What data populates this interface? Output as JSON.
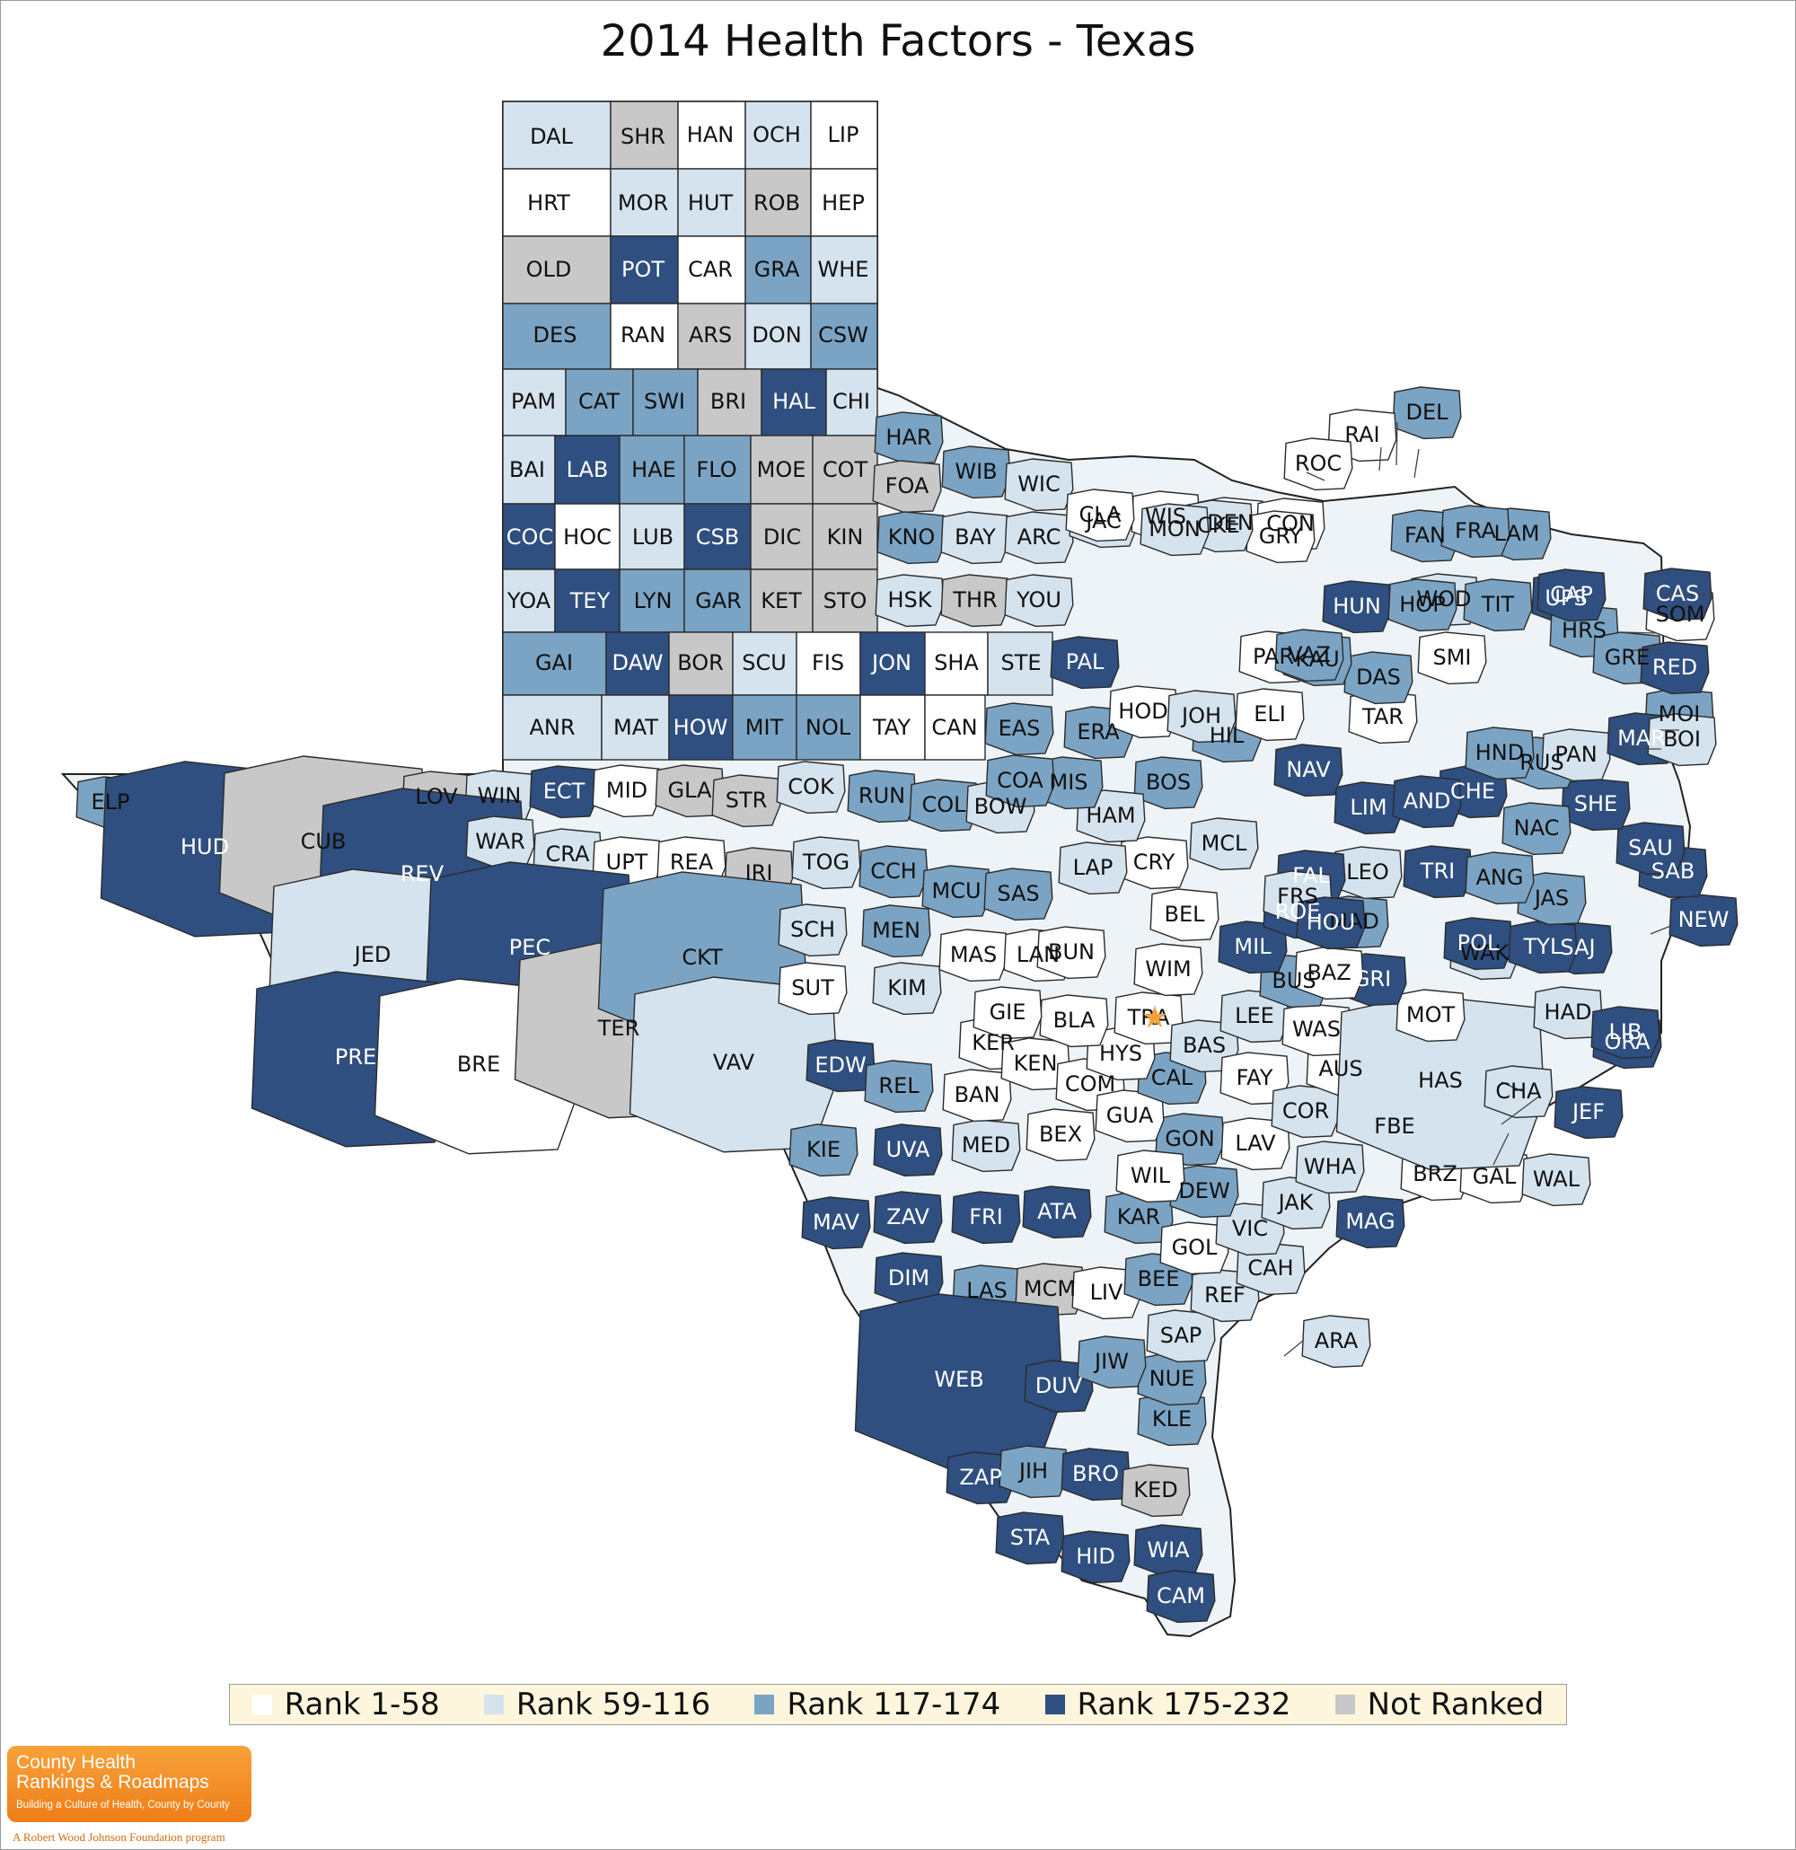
{
  "title": "2014 Health Factors - Texas",
  "legend": [
    {
      "label": "Rank 1-58",
      "class": "r1",
      "color": "#ffffff"
    },
    {
      "label": "Rank 59-116",
      "class": "r2",
      "color": "#d4e3ee"
    },
    {
      "label": "Rank 117-174",
      "class": "r3",
      "color": "#7ba4c4"
    },
    {
      "label": "Rank 175-232",
      "class": "r4",
      "color": "#2f4f80"
    },
    {
      "label": "Not Ranked",
      "class": "nr",
      "color": "#c8c8c8"
    }
  ],
  "rank_colors": {
    "r1": "#ffffff",
    "r2": "#d4e3ee",
    "r3": "#7ba4c4",
    "r4": "#2f4f80",
    "nr": "#c8c8c8"
  },
  "counties": [
    {
      "label": "DAL",
      "rank_class": "r2"
    },
    {
      "label": "SHR",
      "rank_class": "nr"
    },
    {
      "label": "HAN",
      "rank_class": "r1"
    },
    {
      "label": "OCH",
      "rank_class": "r2"
    },
    {
      "label": "LIP",
      "rank_class": "r1"
    },
    {
      "label": "HRT",
      "rank_class": "r1"
    },
    {
      "label": "MOR",
      "rank_class": "r2"
    },
    {
      "label": "HUT",
      "rank_class": "r2"
    },
    {
      "label": "ROB",
      "rank_class": "nr"
    },
    {
      "label": "HEP",
      "rank_class": "r1"
    },
    {
      "label": "OLD",
      "rank_class": "nr"
    },
    {
      "label": "POT",
      "rank_class": "r4"
    },
    {
      "label": "CAR",
      "rank_class": "r1"
    },
    {
      "label": "GRA",
      "rank_class": "r3"
    },
    {
      "label": "WHE",
      "rank_class": "r2"
    },
    {
      "label": "DES",
      "rank_class": "r3"
    },
    {
      "label": "RAN",
      "rank_class": "r1"
    },
    {
      "label": "ARS",
      "rank_class": "nr"
    },
    {
      "label": "DON",
      "rank_class": "r2"
    },
    {
      "label": "CSW",
      "rank_class": "r3"
    },
    {
      "label": "PAM",
      "rank_class": "r2"
    },
    {
      "label": "CAT",
      "rank_class": "r3"
    },
    {
      "label": "SWI",
      "rank_class": "r3"
    },
    {
      "label": "BRI",
      "rank_class": "nr"
    },
    {
      "label": "HAL",
      "rank_class": "r4"
    },
    {
      "label": "CHI",
      "rank_class": "r2"
    },
    {
      "label": "BAI",
      "rank_class": "r2"
    },
    {
      "label": "LAB",
      "rank_class": "r4"
    },
    {
      "label": "HAE",
      "rank_class": "r3"
    },
    {
      "label": "FLO",
      "rank_class": "r3"
    },
    {
      "label": "MOE",
      "rank_class": "nr"
    },
    {
      "label": "COT",
      "rank_class": "nr"
    },
    {
      "label": "COC",
      "rank_class": "r4"
    },
    {
      "label": "HOC",
      "rank_class": "r1"
    },
    {
      "label": "LUB",
      "rank_class": "r2"
    },
    {
      "label": "CSB",
      "rank_class": "r4"
    },
    {
      "label": "DIC",
      "rank_class": "nr"
    },
    {
      "label": "KIN",
      "rank_class": "nr"
    },
    {
      "label": "YOA",
      "rank_class": "r2"
    },
    {
      "label": "TEY",
      "rank_class": "r4"
    },
    {
      "label": "LYN",
      "rank_class": "r3"
    },
    {
      "label": "GAR",
      "rank_class": "r3"
    },
    {
      "label": "KET",
      "rank_class": "nr"
    },
    {
      "label": "STO",
      "rank_class": "nr"
    },
    {
      "label": "HAR",
      "rank_class": "r3"
    },
    {
      "label": "FOA",
      "rank_class": "nr"
    },
    {
      "label": "WIB",
      "rank_class": "r3"
    },
    {
      "label": "WIC",
      "rank_class": "r2"
    },
    {
      "label": "KNO",
      "rank_class": "r3"
    },
    {
      "label": "BAY",
      "rank_class": "r2"
    },
    {
      "label": "ARC",
      "rank_class": "r2"
    },
    {
      "label": "HSK",
      "rank_class": "r2"
    },
    {
      "label": "THR",
      "rank_class": "nr"
    },
    {
      "label": "YOU",
      "rank_class": "r2"
    },
    {
      "label": "GAI",
      "rank_class": "r3"
    },
    {
      "label": "DAW",
      "rank_class": "r4"
    },
    {
      "label": "BOR",
      "rank_class": "nr"
    },
    {
      "label": "SCU",
      "rank_class": "r2"
    },
    {
      "label": "FIS",
      "rank_class": "r1"
    },
    {
      "label": "JON",
      "rank_class": "r4"
    },
    {
      "label": "SHA",
      "rank_class": "r1"
    },
    {
      "label": "STE",
      "rank_class": "r2"
    },
    {
      "label": "ANR",
      "rank_class": "r2"
    },
    {
      "label": "MAT",
      "rank_class": "r2"
    },
    {
      "label": "HOW",
      "rank_class": "r4"
    },
    {
      "label": "MIT",
      "rank_class": "r3"
    },
    {
      "label": "NOL",
      "rank_class": "r3"
    },
    {
      "label": "TAY",
      "rank_class": "r1"
    },
    {
      "label": "CAN",
      "rank_class": "r1"
    },
    {
      "label": "ELP",
      "rank_class": "r3"
    },
    {
      "label": "HUD",
      "rank_class": "r4"
    },
    {
      "label": "CUB",
      "rank_class": "nr"
    },
    {
      "label": "LOV",
      "rank_class": "nr"
    },
    {
      "label": "WIN",
      "rank_class": "r2"
    },
    {
      "label": "ECT",
      "rank_class": "r4"
    },
    {
      "label": "MID",
      "rank_class": "r1"
    },
    {
      "label": "GLA",
      "rank_class": "nr"
    },
    {
      "label": "STR",
      "rank_class": "nr"
    },
    {
      "label": "COK",
      "rank_class": "r2"
    },
    {
      "label": "REV",
      "rank_class": "r4"
    },
    {
      "label": "WAR",
      "rank_class": "r2"
    },
    {
      "label": "CRA",
      "rank_class": "r2"
    },
    {
      "label": "UPT",
      "rank_class": "r1"
    },
    {
      "label": "REA",
      "rank_class": "r1"
    },
    {
      "label": "IRI",
      "rank_class": "nr"
    },
    {
      "label": "TOG",
      "rank_class": "r2"
    },
    {
      "label": "JED",
      "rank_class": "r2"
    },
    {
      "label": "PEC",
      "rank_class": "r4"
    },
    {
      "label": "PRE",
      "rank_class": "r4"
    },
    {
      "label": "BRE",
      "rank_class": "r1"
    },
    {
      "label": "TER",
      "rank_class": "nr"
    },
    {
      "label": "CKT",
      "rank_class": "r3"
    },
    {
      "label": "VAV",
      "rank_class": "r2"
    },
    {
      "label": "SCH",
      "rank_class": "r2"
    },
    {
      "label": "SUT",
      "rank_class": "r1"
    },
    {
      "label": "KIM",
      "rank_class": "r2"
    },
    {
      "label": "MEN",
      "rank_class": "r3"
    },
    {
      "label": "CCH",
      "rank_class": "r3"
    },
    {
      "label": "RUN",
      "rank_class": "r3"
    },
    {
      "label": "COL",
      "rank_class": "r3"
    },
    {
      "label": "BOW",
      "rank_class": "r2"
    },
    {
      "label": "MCU",
      "rank_class": "r3"
    },
    {
      "label": "SAS",
      "rank_class": "r3"
    },
    {
      "label": "EDW",
      "rank_class": "r4"
    },
    {
      "label": "REL",
      "rank_class": "r3"
    },
    {
      "label": "KIE",
      "rank_class": "r3"
    },
    {
      "label": "UVA",
      "rank_class": "r4"
    },
    {
      "label": "MED",
      "rank_class": "r2"
    },
    {
      "label": "MAV",
      "rank_class": "r4"
    },
    {
      "label": "ZAV",
      "rank_class": "r4"
    },
    {
      "label": "FRI",
      "rank_class": "r4"
    },
    {
      "label": "DIM",
      "rank_class": "r4"
    },
    {
      "label": "LAS",
      "rank_class": "r3"
    },
    {
      "label": "MCM",
      "rank_class": "nr"
    },
    {
      "label": "WEB",
      "rank_class": "r4"
    },
    {
      "label": "DUV",
      "rank_class": "r4"
    },
    {
      "label": "ZAP",
      "rank_class": "r4"
    },
    {
      "label": "JIH",
      "rank_class": "r3"
    },
    {
      "label": "BRO",
      "rank_class": "r4"
    },
    {
      "label": "STA",
      "rank_class": "r4"
    },
    {
      "label": "HID",
      "rank_class": "r4"
    },
    {
      "label": "WIA",
      "rank_class": "r4"
    },
    {
      "label": "CAM",
      "rank_class": "r4"
    },
    {
      "label": "KED",
      "rank_class": "nr"
    },
    {
      "label": "KLE",
      "rank_class": "r3"
    },
    {
      "label": "NUE",
      "rank_class": "r3"
    },
    {
      "label": "JIW",
      "rank_class": "r3"
    },
    {
      "label": "SAP",
      "rank_class": "r2"
    },
    {
      "label": "LIV",
      "rank_class": "r1"
    },
    {
      "label": "ATA",
      "rank_class": "r4"
    },
    {
      "label": "BEE",
      "rank_class": "r3"
    },
    {
      "label": "REF",
      "rank_class": "r2"
    },
    {
      "label": "KAR",
      "rank_class": "r3"
    },
    {
      "label": "GOL",
      "rank_class": "r1"
    },
    {
      "label": "ARA",
      "rank_class": "r2"
    },
    {
      "label": "CAH",
      "rank_class": "r2"
    },
    {
      "label": "VIC",
      "rank_class": "r2"
    },
    {
      "label": "JAK",
      "rank_class": "r2"
    },
    {
      "label": "DEW",
      "rank_class": "r3"
    },
    {
      "label": "GON",
      "rank_class": "r3"
    },
    {
      "label": "WIL",
      "rank_class": "r1"
    },
    {
      "label": "BEX",
      "rank_class": "r1"
    },
    {
      "label": "BAN",
      "rank_class": "r1"
    },
    {
      "label": "KER",
      "rank_class": "r1"
    },
    {
      "label": "KEN",
      "rank_class": "r1"
    },
    {
      "label": "COM",
      "rank_class": "r1"
    },
    {
      "label": "GUA",
      "rank_class": "r1"
    },
    {
      "label": "CAL",
      "rank_class": "r3"
    },
    {
      "label": "HYS",
      "rank_class": "r1"
    },
    {
      "label": "BLA",
      "rank_class": "r1"
    },
    {
      "label": "GIE",
      "rank_class": "r1"
    },
    {
      "label": "TRA",
      "rank_class": "r1"
    },
    {
      "label": "BAS",
      "rank_class": "r2"
    },
    {
      "label": "LEE",
      "rank_class": "r2"
    },
    {
      "label": "FAY",
      "rank_class": "r1"
    },
    {
      "label": "LAV",
      "rank_class": "r1"
    },
    {
      "label": "COR",
      "rank_class": "r2"
    },
    {
      "label": "WHA",
      "rank_class": "r2"
    },
    {
      "label": "AUS",
      "rank_class": "r1"
    },
    {
      "label": "WAS",
      "rank_class": "r1"
    },
    {
      "label": "MAG",
      "rank_class": "r4"
    },
    {
      "label": "BRZ",
      "rank_class": "r1"
    },
    {
      "label": "FBE",
      "rank_class": "r1"
    },
    {
      "label": "GAL",
      "rank_class": "r1"
    },
    {
      "label": "WAL",
      "rank_class": "r2"
    },
    {
      "label": "HAS",
      "rank_class": "r2"
    },
    {
      "label": "MOT",
      "rank_class": "r1"
    },
    {
      "label": "CHA",
      "rank_class": "r2"
    },
    {
      "label": "JEF",
      "rank_class": "r4"
    },
    {
      "label": "ORA",
      "rank_class": "r4"
    },
    {
      "label": "HAD",
      "rank_class": "r2"
    },
    {
      "label": "LIB",
      "rank_class": "r4"
    },
    {
      "label": "SAJ",
      "rank_class": "r4"
    },
    {
      "label": "WAK",
      "rank_class": "r2"
    },
    {
      "label": "GRI",
      "rank_class": "r4"
    },
    {
      "label": "BUS",
      "rank_class": "r3"
    },
    {
      "label": "BAZ",
      "rank_class": "r1"
    },
    {
      "label": "MAS",
      "rank_class": "r1"
    },
    {
      "label": "LAN",
      "rank_class": "r1"
    },
    {
      "label": "BUN",
      "rank_class": "r1"
    },
    {
      "label": "WIM",
      "rank_class": "r1"
    },
    {
      "label": "BEL",
      "rank_class": "r1"
    },
    {
      "label": "MIL",
      "rank_class": "r4"
    },
    {
      "label": "ROE",
      "rank_class": "r4"
    },
    {
      "label": "MAD",
      "rank_class": "r3"
    },
    {
      "label": "LEO",
      "rank_class": "r2"
    },
    {
      "label": "FAL",
      "rank_class": "r4"
    },
    {
      "label": "LIM",
      "rank_class": "r4"
    },
    {
      "label": "FRS",
      "rank_class": "r2"
    },
    {
      "label": "HOU",
      "rank_class": "r4"
    },
    {
      "label": "TRI",
      "rank_class": "r4"
    },
    {
      "label": "POL",
      "rank_class": "r4"
    },
    {
      "label": "TYL",
      "rank_class": "r4"
    },
    {
      "label": "JAS",
      "rank_class": "r3"
    },
    {
      "label": "NEW",
      "rank_class": "r4"
    },
    {
      "label": "SAB",
      "rank_class": "r4"
    },
    {
      "label": "SAU",
      "rank_class": "r4"
    },
    {
      "label": "SHE",
      "rank_class": "r4"
    },
    {
      "label": "NAC",
      "rank_class": "r3"
    },
    {
      "label": "ANG",
      "rank_class": "r3"
    },
    {
      "label": "CHE",
      "rank_class": "r4"
    },
    {
      "label": "AND",
      "rank_class": "r4"
    },
    {
      "label": "RUS",
      "rank_class": "r3"
    },
    {
      "label": "PAN",
      "rank_class": "r2"
    },
    {
      "label": "HND",
      "rank_class": "r3"
    },
    {
      "label": "NAV",
      "rank_class": "r4"
    },
    {
      "label": "HIL",
      "rank_class": "r3"
    },
    {
      "label": "BOS",
      "rank_class": "r3"
    },
    {
      "label": "MCL",
      "rank_class": "r2"
    },
    {
      "label": "CRY",
      "rank_class": "r1"
    },
    {
      "label": "LAP",
      "rank_class": "r2"
    },
    {
      "label": "HAM",
      "rank_class": "r2"
    },
    {
      "label": "MIS",
      "rank_class": "r3"
    },
    {
      "label": "COA",
      "rank_class": "r3"
    },
    {
      "label": "ERA",
      "rank_class": "r3"
    },
    {
      "label": "EAS",
      "rank_class": "r3"
    },
    {
      "label": "PAL",
      "rank_class": "r4"
    },
    {
      "label": "HOD",
      "rank_class": "r1"
    },
    {
      "label": "JOH",
      "rank_class": "r2"
    },
    {
      "label": "ELI",
      "rank_class": "r1"
    },
    {
      "label": "PAR",
      "rank_class": "r1"
    },
    {
      "label": "TAR",
      "rank_class": "r1"
    },
    {
      "label": "DAS",
      "rank_class": "r3"
    },
    {
      "label": "KAU",
      "rank_class": "r3"
    },
    {
      "label": "VAZ",
      "rank_class": "r3"
    },
    {
      "label": "SMI",
      "rank_class": "r1"
    },
    {
      "label": "WOD",
      "rank_class": "r2"
    },
    {
      "label": "UPS",
      "rank_class": "r4"
    },
    {
      "label": "HRS",
      "rank_class": "r3"
    },
    {
      "label": "GRE",
      "rank_class": "r3"
    },
    {
      "label": "SOM",
      "rank_class": "r1"
    },
    {
      "label": "JAC",
      "rank_class": "r2"
    },
    {
      "label": "WIS",
      "rank_class": "r1"
    },
    {
      "label": "DEN",
      "rank_class": "r1"
    },
    {
      "label": "CON",
      "rank_class": "r1"
    },
    {
      "label": "HUN",
      "rank_class": "r4"
    },
    {
      "label": "HOP",
      "rank_class": "r3"
    },
    {
      "label": "TIT",
      "rank_class": "r3"
    },
    {
      "label": "CAS",
      "rank_class": "r4"
    },
    {
      "label": "MOI",
      "rank_class": "r3"
    },
    {
      "label": "MAR",
      "rank_class": "r4"
    },
    {
      "label": "CAP",
      "rank_class": "r4"
    },
    {
      "label": "BOI",
      "rank_class": "r2"
    },
    {
      "label": "RED",
      "rank_class": "r4"
    },
    {
      "label": "LAM",
      "rank_class": "r3"
    },
    {
      "label": "FAN",
      "rank_class": "r3"
    },
    {
      "label": "FRA",
      "rank_class": "r3"
    },
    {
      "label": "DEL",
      "rank_class": "r3"
    },
    {
      "label": "RAI",
      "rank_class": "r1"
    },
    {
      "label": "ROC",
      "rank_class": "r1"
    },
    {
      "label": "GRY",
      "rank_class": "r1"
    },
    {
      "label": "CKE",
      "rank_class": "r2"
    },
    {
      "label": "MON",
      "rank_class": "r2"
    },
    {
      "label": "CLA",
      "rank_class": "r1"
    }
  ],
  "logo": {
    "line1": "County Health",
    "line2": "Rankings & Roadmaps",
    "tagline": "Building a Culture of Health, County by County",
    "foundation": "A Robert Wood Johnson Foundation program"
  }
}
